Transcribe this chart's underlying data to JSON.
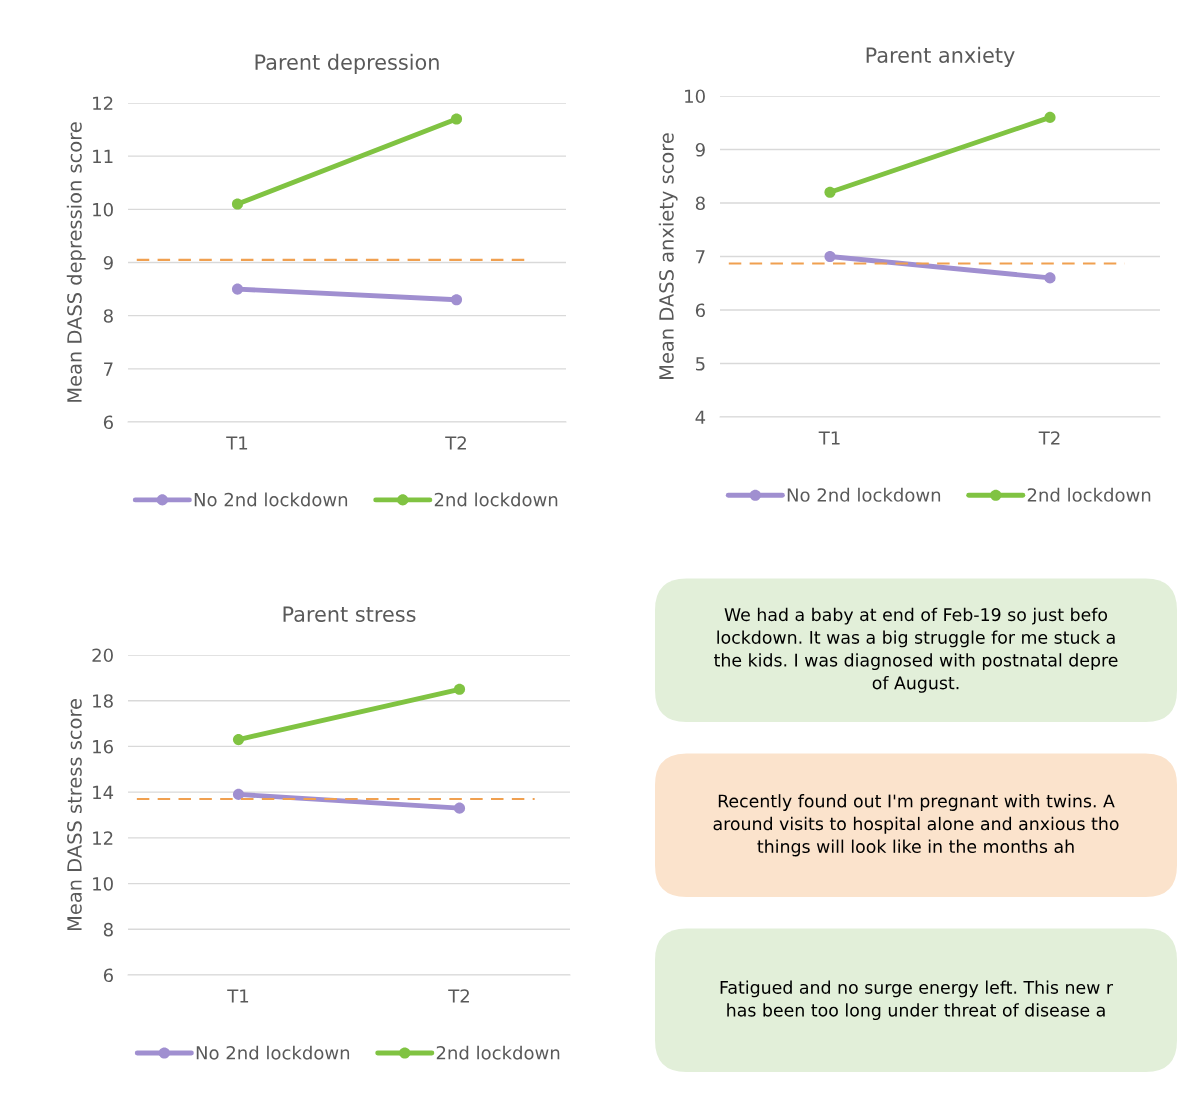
{
  "chart_data": [
    {
      "type": "line",
      "title": "Parent depression",
      "ylabel": "Mean DASS depression score",
      "categories": [
        "T1",
        "T2"
      ],
      "series": [
        {
          "name": "No 2nd lockdown",
          "color": "#a08fd0",
          "values": [
            8.5,
            8.3
          ]
        },
        {
          "name": "2nd lockdown",
          "color": "#80c342",
          "values": [
            10.1,
            11.7
          ]
        }
      ],
      "ylim": [
        6,
        12
      ],
      "yticks": [
        6,
        7,
        8,
        9,
        10,
        11,
        12
      ],
      "grid": "y",
      "legend": "bottom",
      "marker": "circle",
      "line_style": "solid",
      "ref_lines": [
        {
          "axis": "y",
          "value": 9.05,
          "color": "#f0a050",
          "line_style": "dashed"
        }
      ]
    },
    {
      "type": "line",
      "title": "Parent anxiety",
      "ylabel": "Mean DASS anxiety score",
      "categories": [
        "T1",
        "T2"
      ],
      "series": [
        {
          "name": "No 2nd lockdown",
          "color": "#a08fd0",
          "values": [
            7.0,
            6.6
          ]
        },
        {
          "name": "2nd lockdown",
          "color": "#80c342",
          "values": [
            8.2,
            9.6
          ]
        }
      ],
      "ylim": [
        4,
        10
      ],
      "yticks": [
        4,
        5,
        6,
        7,
        8,
        9,
        10
      ],
      "grid": "y",
      "legend": "bottom",
      "marker": "circle",
      "line_style": "solid",
      "ref_lines": [
        {
          "axis": "y",
          "value": 6.87,
          "color": "#f0a050",
          "line_style": "dashed"
        }
      ]
    },
    {
      "type": "line",
      "title": "Parent stress",
      "ylabel": "Mean DASS stress score",
      "categories": [
        "T1",
        "T2"
      ],
      "series": [
        {
          "name": "No 2nd lockdown",
          "color": "#a08fd0",
          "values": [
            13.9,
            13.3
          ]
        },
        {
          "name": "2nd lockdown",
          "color": "#80c342",
          "values": [
            16.3,
            18.5
          ]
        }
      ],
      "ylim": [
        6,
        20
      ],
      "yticks": [
        6,
        8,
        10,
        12,
        14,
        16,
        18,
        20
      ],
      "grid": "y",
      "legend": "bottom",
      "marker": "circle",
      "line_style": "solid",
      "ref_lines": [
        {
          "axis": "y",
          "value": 13.7,
          "color": "#f0a050",
          "line_style": "dashed"
        }
      ]
    },
    {
      "type": "other",
      "annotations": [
        "We had a baby at end of Feb-19 so just befo\nlockdown. It was a big struggle for me stuck a\nthe kids. I was diagnosed with postnatal depre\nof August.",
        "Recently found out I'm pregnant with twins. A\naround visits to hospital alone and anxious tho\nthings will look like in the months ah",
        "Fatigued and no surge energy left. This new r\nhas been too long under threat of disease a"
      ]
    }
  ]
}
